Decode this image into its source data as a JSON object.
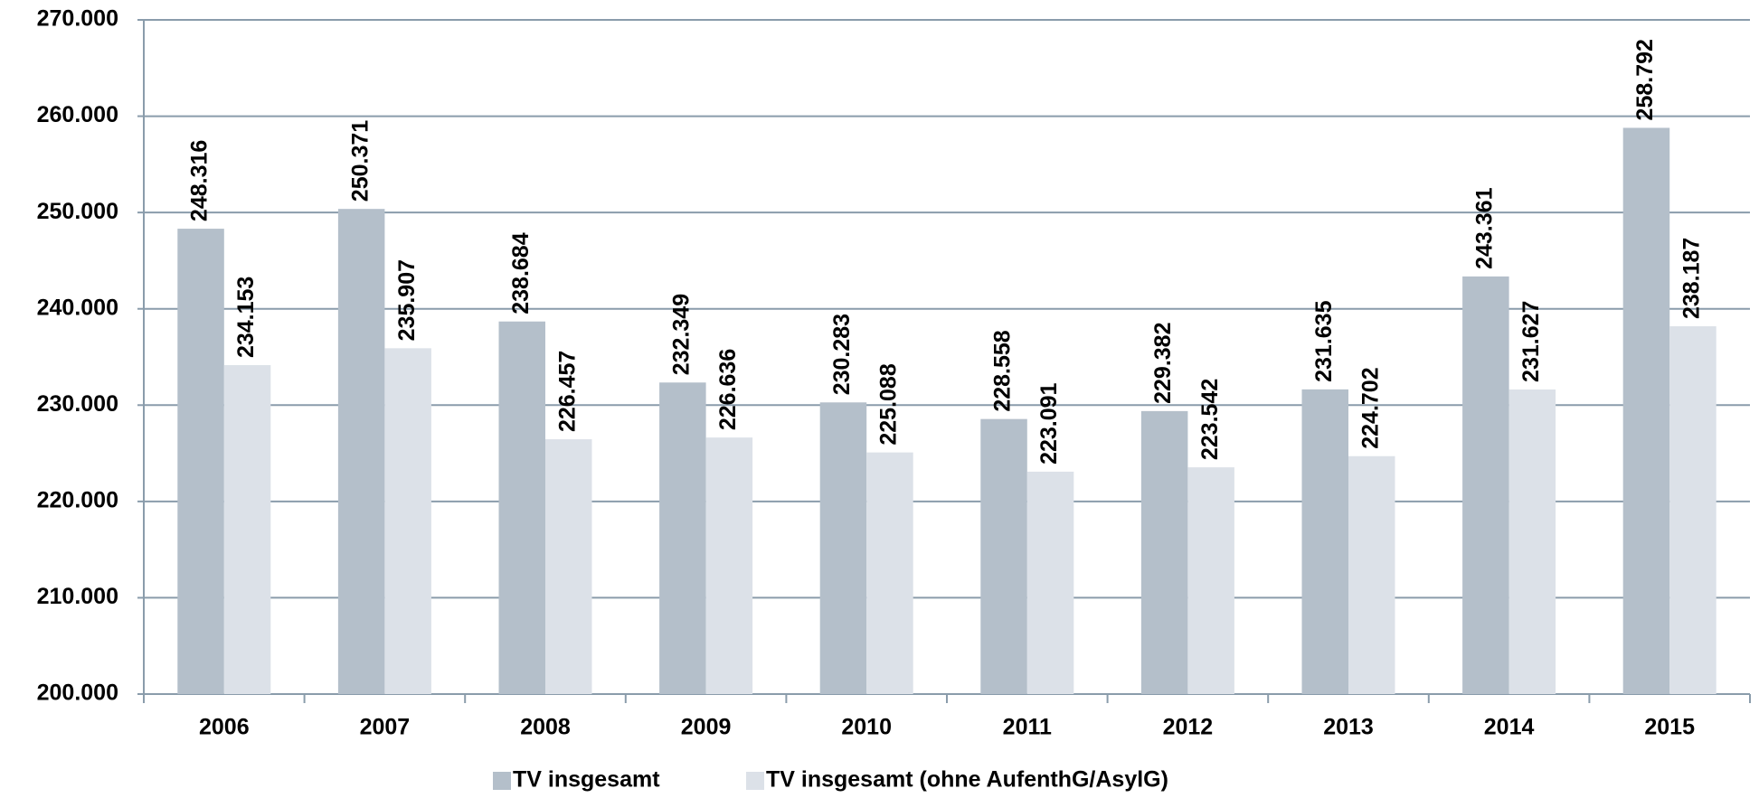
{
  "chart_data": {
    "type": "bar",
    "categories": [
      "2006",
      "2007",
      "2008",
      "2009",
      "2010",
      "2011",
      "2012",
      "2013",
      "2014",
      "2015"
    ],
    "series": [
      {
        "name": "TV insgesamt",
        "color": "#b4bfca",
        "values": [
          248316,
          250371,
          238684,
          232349,
          230283,
          228558,
          229382,
          231635,
          243361,
          258792
        ],
        "value_labels": [
          "248.316",
          "250.371",
          "238.684",
          "232.349",
          "230.283",
          "228.558",
          "229.382",
          "231.635",
          "243.361",
          "258.792"
        ]
      },
      {
        "name": "TV insgesamt (ohne AufenthG/AsylG)",
        "color": "#dce1e8",
        "values": [
          234153,
          235907,
          226457,
          226636,
          225088,
          223091,
          223542,
          224702,
          231627,
          238187
        ],
        "value_labels": [
          "234.153",
          "235.907",
          "226.457",
          "226.636",
          "225.088",
          "223.091",
          "223.542",
          "224.702",
          "231.627",
          "238.187"
        ]
      }
    ],
    "ylim": [
      200000,
      270000
    ],
    "yticks": [
      {
        "value": 200000,
        "label": "200.000"
      },
      {
        "value": 210000,
        "label": "210.000"
      },
      {
        "value": 220000,
        "label": "220.000"
      },
      {
        "value": 230000,
        "label": "230.000"
      },
      {
        "value": 240000,
        "label": "240.000"
      },
      {
        "value": 250000,
        "label": "250.000"
      },
      {
        "value": 260000,
        "label": "260.000"
      },
      {
        "value": 270000,
        "label": "270.000"
      }
    ],
    "grid": true,
    "legend": "bottom"
  }
}
